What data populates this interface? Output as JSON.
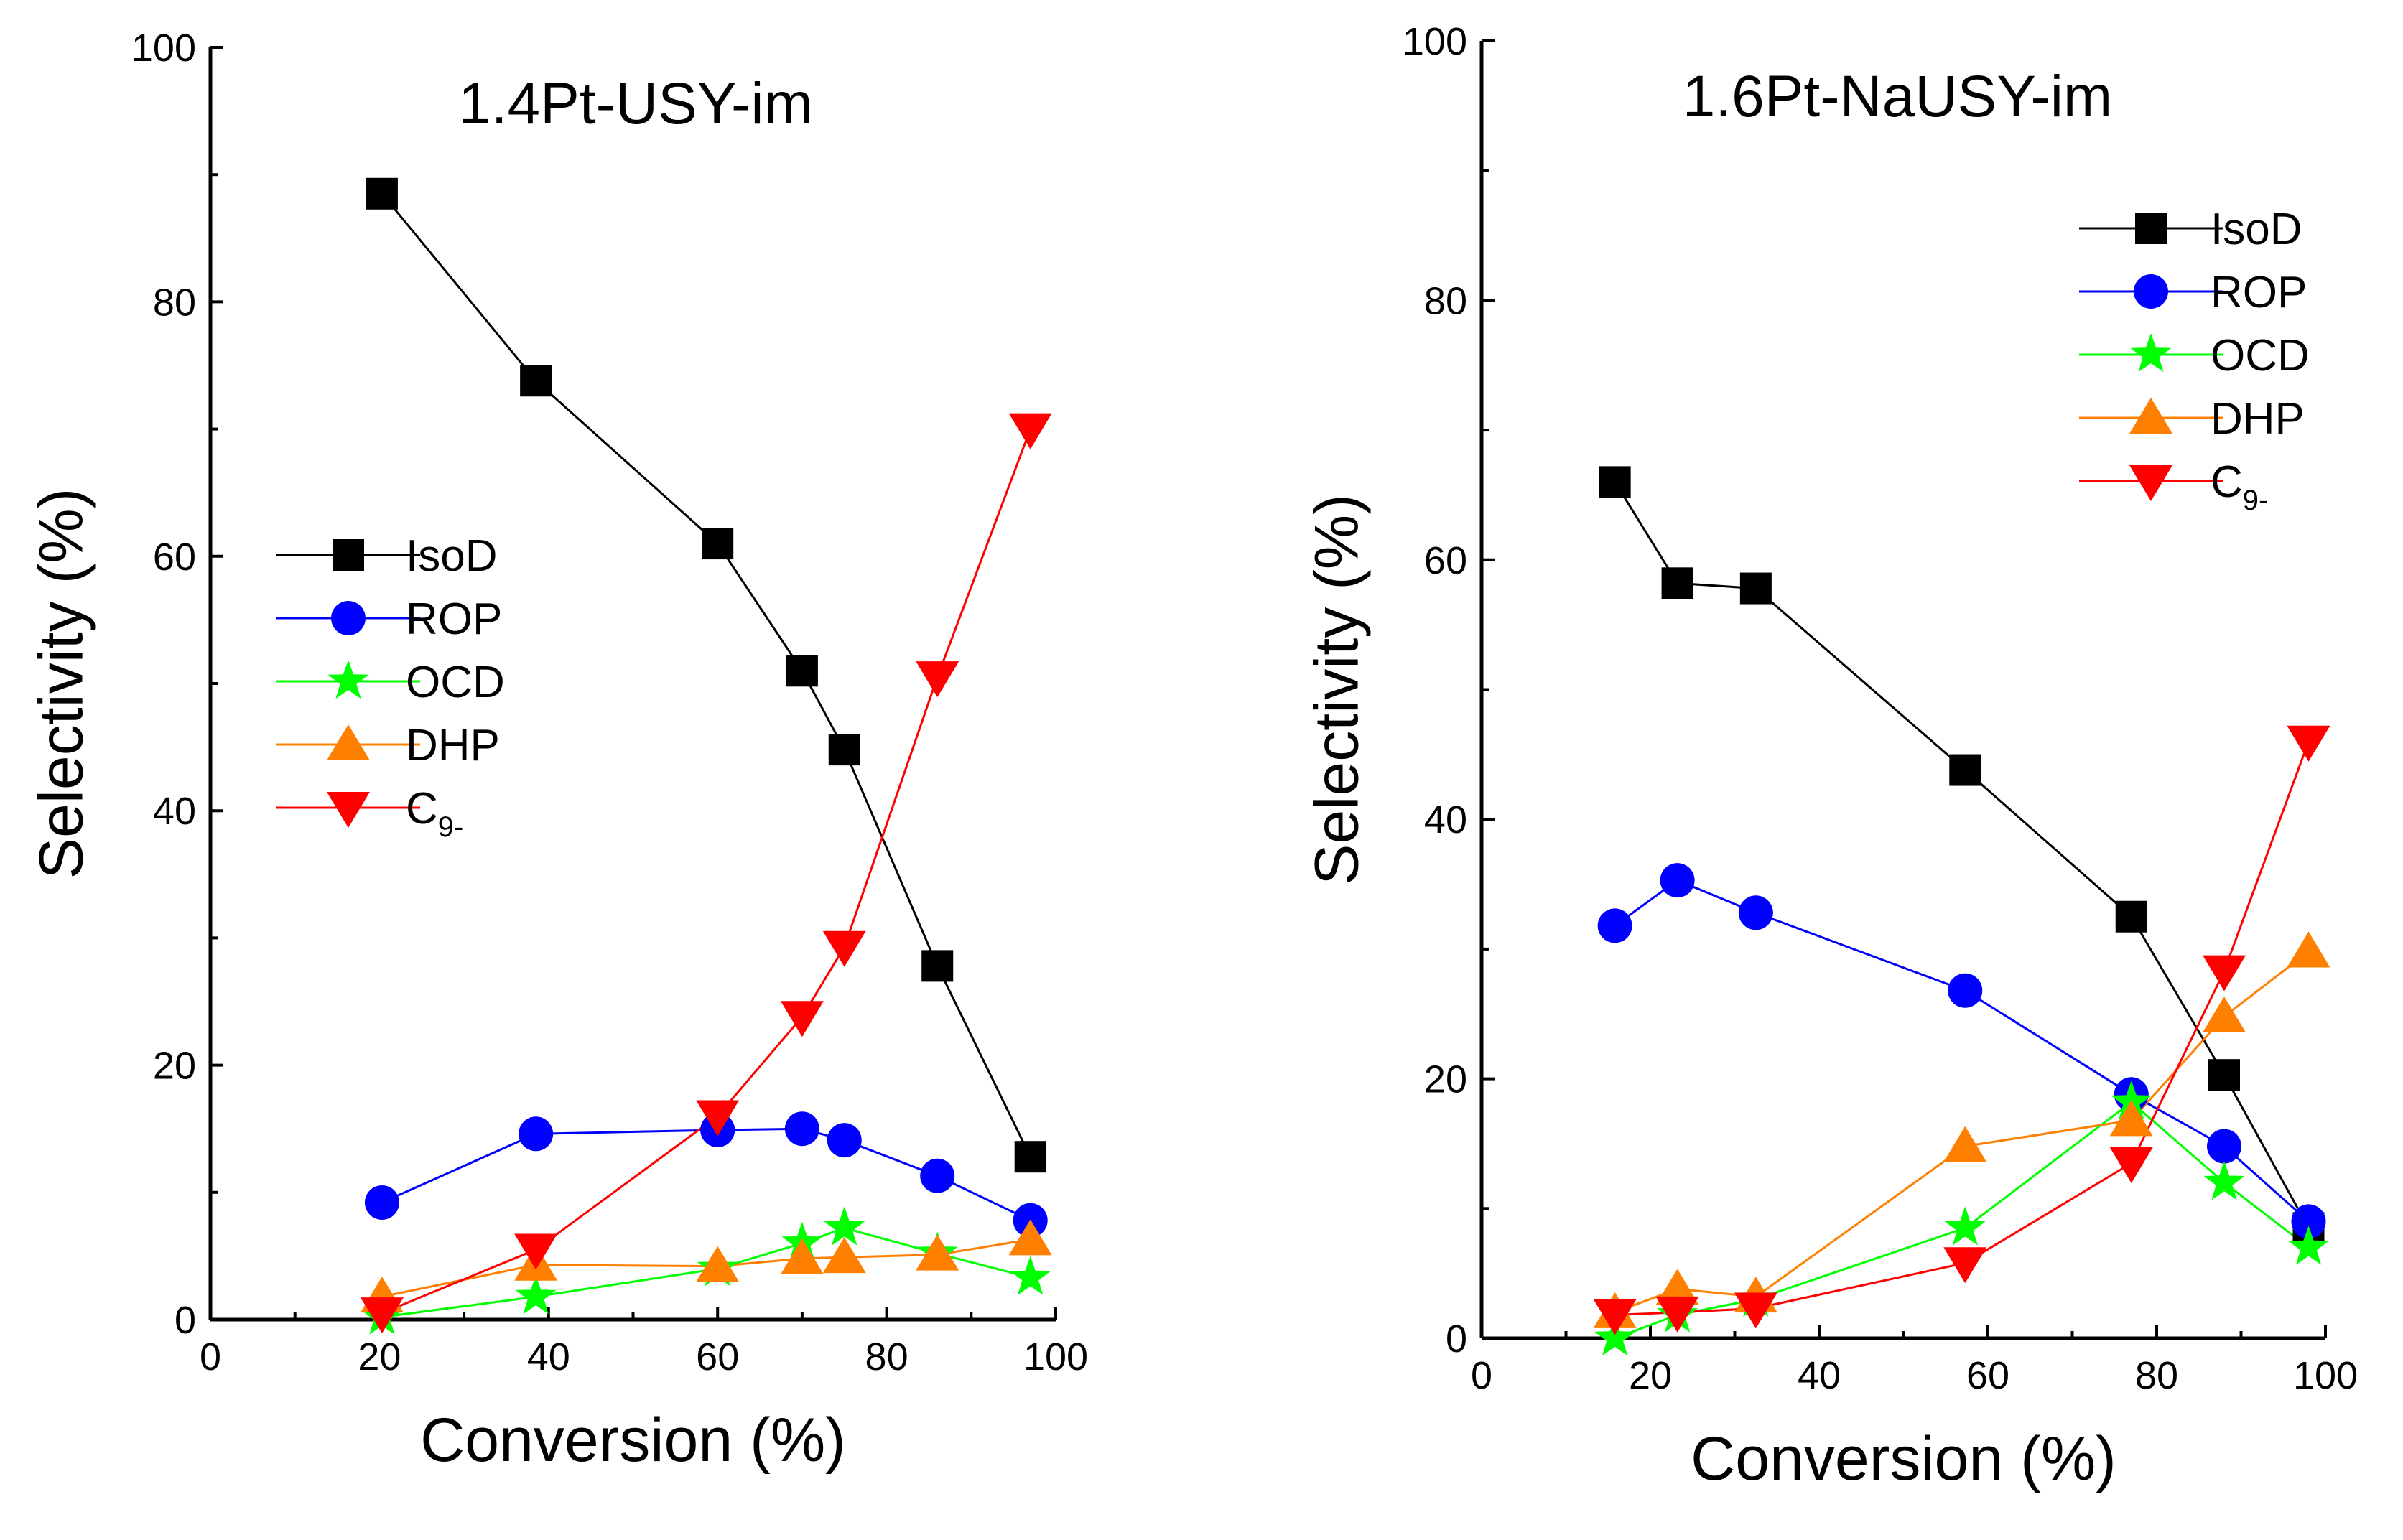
{
  "chart_data": [
    {
      "type": "line",
      "title": "1.4Pt-USY-im",
      "xlabel": "Conversion (%)",
      "ylabel": "Selectivity (%)",
      "xlim": [
        0,
        100
      ],
      "ylim": [
        0,
        100
      ],
      "xticks": [
        "0",
        "20",
        "40",
        "60",
        "80",
        "100"
      ],
      "yticks": [
        "0",
        "20",
        "40",
        "60",
        "80",
        "100"
      ],
      "legend_position": "center-left",
      "series": [
        {
          "name": "IsoD",
          "sub": "",
          "marker": "square",
          "color": "#000000",
          "x": [
            20.3,
            38.5,
            60.0,
            70.0,
            75.0,
            86.0,
            97.0
          ],
          "y": [
            88.5,
            73.8,
            61.0,
            51.0,
            44.8,
            27.8,
            12.8
          ]
        },
        {
          "name": "ROP",
          "sub": "",
          "marker": "circle",
          "color": "#0000ff",
          "x": [
            20.3,
            38.5,
            60.0,
            70.0,
            75.0,
            86.0,
            97.0
          ],
          "y": [
            9.2,
            14.6,
            14.9,
            15.0,
            14.1,
            11.3,
            7.8
          ]
        },
        {
          "name": "OCD",
          "sub": "",
          "marker": "star",
          "color": "#00ff00",
          "x": [
            20.3,
            38.5,
            60.0,
            70.0,
            75.0,
            86.0,
            97.0
          ],
          "y": [
            0.2,
            1.8,
            4.0,
            6.0,
            7.2,
            5.2,
            3.3
          ]
        },
        {
          "name": "DHP",
          "sub": "",
          "marker": "triangle-up",
          "color": "#ff8000",
          "x": [
            20.3,
            38.5,
            60.0,
            70.0,
            75.0,
            86.0,
            97.0
          ],
          "y": [
            1.8,
            4.3,
            4.2,
            4.8,
            4.9,
            5.1,
            6.3
          ]
        },
        {
          "name": "C",
          "sub": "9-",
          "marker": "triangle-down",
          "color": "#ff0000",
          "x": [
            20.3,
            38.5,
            60.0,
            70.0,
            75.0,
            86.0,
            97.0
          ],
          "y": [
            0.5,
            5.5,
            16.0,
            23.8,
            29.3,
            50.5,
            70.0
          ]
        }
      ]
    },
    {
      "type": "line",
      "title": "1.6Pt-NaUSY-im",
      "xlabel": "Conversion (%)",
      "ylabel": "Selectivity (%)",
      "xlim": [
        0,
        100
      ],
      "ylim": [
        0,
        100
      ],
      "xticks": [
        "0",
        "20",
        "40",
        "60",
        "80",
        "100"
      ],
      "yticks": [
        "0",
        "20",
        "40",
        "60",
        "80",
        "100"
      ],
      "legend_position": "top-right",
      "series": [
        {
          "name": "IsoD",
          "sub": "",
          "marker": "square",
          "color": "#000000",
          "x": [
            15.8,
            23.2,
            32.5,
            57.3,
            77.0,
            88.0,
            98.0
          ],
          "y": [
            66.0,
            58.2,
            57.8,
            43.8,
            32.5,
            20.3,
            8.5
          ]
        },
        {
          "name": "ROP",
          "sub": "",
          "marker": "circle",
          "color": "#0000ff",
          "x": [
            15.8,
            23.2,
            32.5,
            57.3,
            77.0,
            88.0,
            98.0
          ],
          "y": [
            31.8,
            35.3,
            32.8,
            26.8,
            18.8,
            14.8,
            9.0
          ]
        },
        {
          "name": "OCD",
          "sub": "",
          "marker": "star",
          "color": "#00ff00",
          "x": [
            15.8,
            23.2,
            32.5,
            57.3,
            77.0,
            88.0,
            98.0
          ],
          "y": [
            0.0,
            1.8,
            3.0,
            8.5,
            18.2,
            12.0,
            7.0
          ]
        },
        {
          "name": "DHP",
          "sub": "",
          "marker": "triangle-up",
          "color": "#ff8000",
          "x": [
            15.8,
            23.2,
            32.5,
            57.3,
            77.0,
            88.0,
            98.0
          ],
          "y": [
            2.0,
            3.8,
            3.2,
            14.8,
            16.8,
            24.8,
            29.8
          ]
        },
        {
          "name": "C",
          "sub": "9-",
          "marker": "triangle-down",
          "color": "#ff0000",
          "x": [
            15.8,
            23.2,
            32.5,
            57.3,
            77.0,
            88.0,
            98.0
          ],
          "y": [
            1.8,
            2.0,
            2.3,
            5.8,
            13.5,
            28.3,
            46.0
          ]
        }
      ]
    }
  ]
}
